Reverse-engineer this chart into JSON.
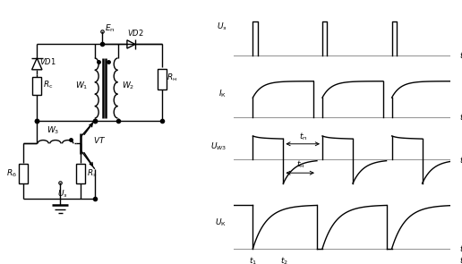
{
  "bg_color": "#ffffff",
  "lc": "#000000",
  "gc": "#999999",
  "lw": 1.0,
  "lw_thick": 1.8
}
